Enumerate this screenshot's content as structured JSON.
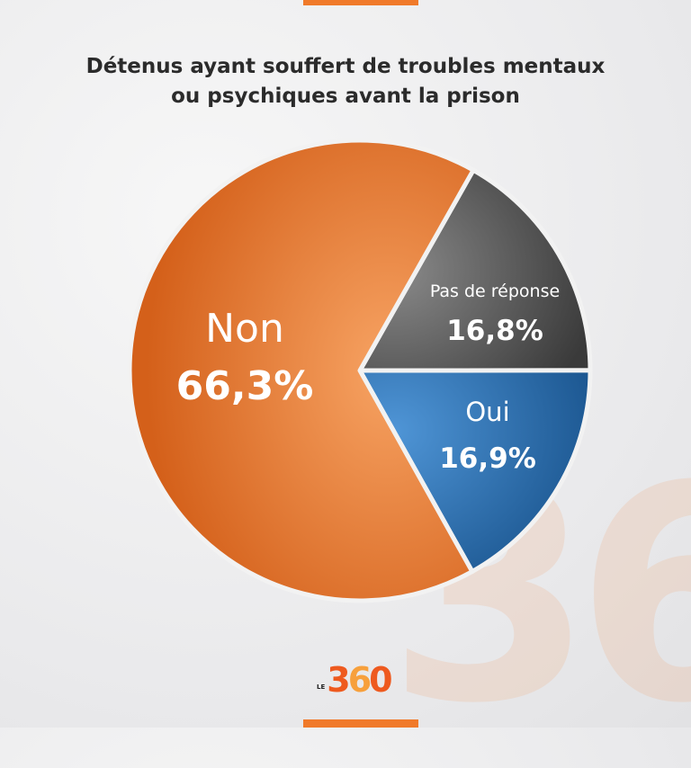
{
  "chart_data": {
    "type": "pie",
    "title_line1": "Détenus ayant souffert de troubles mentaux",
    "title_line2": "ou psychiques avant la prison",
    "slices": [
      {
        "label": "Pas de réponse",
        "value": 16.8,
        "value_text": "16,8%",
        "color": "#4a4a4a"
      },
      {
        "label": "Oui",
        "value": 16.9,
        "value_text": "16,9%",
        "color": "#24629f"
      },
      {
        "label": "Non",
        "value": 66.3,
        "value_text": "66,3%",
        "color": "#e06d22"
      }
    ]
  },
  "logo": {
    "prefix": "LE",
    "number_a": "3",
    "number_b": "6",
    "number_c": "0"
  }
}
